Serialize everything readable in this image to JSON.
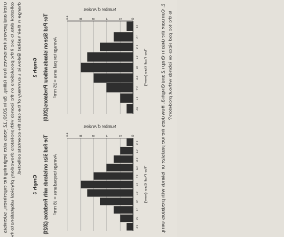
{
  "paragraph_lines": [
    "orted and prevent themselves from falling. So in 2020, 12 years after beginning the experiment, scientists",
    "collected data to see if the populations on the islands with predators showed any physical adaptations to the",
    "change in their habitat. Below is a summary of the data the scientists collected."
  ],
  "chart_data": [
    {
      "type": "bar",
      "label": "Graph 2",
      "title": "Toe Pad Size on Islands without Predators (2010)",
      "subtitle": "Average toe pad area = 15 mm²",
      "ylabel": "Number of Anoles",
      "xlabel": "Toe Pad Size (mm²)",
      "categories": [
        11,
        12,
        13,
        14,
        15,
        16,
        17,
        18,
        19
      ],
      "values": [
        1,
        3,
        5,
        7,
        8,
        6,
        4,
        2,
        1
      ],
      "color": "#2e2e2e",
      "ylim": [
        0,
        10
      ],
      "yticks": [
        0,
        2,
        4,
        6,
        8,
        10
      ],
      "grid": true
    },
    {
      "type": "bar",
      "label": "Graph 3",
      "title": "Toe Pad Size on Islands with Predators (2020)",
      "subtitle": "Average toe pad area = 18 mm²",
      "ylabel": "Number of Anoles",
      "xlabel": "Toe Pad Size (mm²)",
      "categories": [
        13,
        14,
        15,
        16,
        17,
        18,
        19,
        20,
        21,
        22,
        23
      ],
      "values": [
        1,
        2,
        3,
        4,
        6,
        8,
        7,
        5,
        3,
        2,
        1
      ],
      "color": "#2e2e2e",
      "ylim": [
        0,
        10
      ],
      "yticks": [
        0,
        2,
        4,
        6,
        8,
        10
      ],
      "grid": true
    }
  ],
  "question_lines": [
    "2.  Compare the data in Graph 2 and Graph 3. How does the toe pad size on islands with predators comp",
    "to the toe pad sizes on islands without predators?"
  ]
}
